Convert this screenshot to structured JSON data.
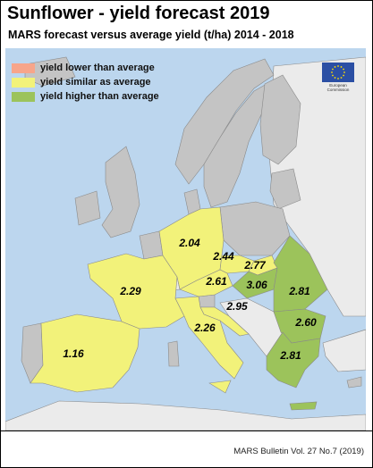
{
  "title": "Sunflower - yield forecast 2019",
  "subtitle": "MARS forecast versus average yield (t/ha) 2014 - 2018",
  "legend": [
    {
      "label": "yield lower than average",
      "color": "#f7a58a"
    },
    {
      "label": "yield similar as average",
      "color": "#f2f27a"
    },
    {
      "label": "yield higher than average",
      "color": "#9cc35b"
    }
  ],
  "colors": {
    "sea": "#bcd6ee",
    "non_producing": "#c4c4c4",
    "non_eu": "#ebebeb",
    "similar": "#f2f27a",
    "higher": "#9cc35b",
    "eu_blue": "#2b4fa4",
    "eu_star": "#ffdd00"
  },
  "eu_logo": {
    "line1": "European",
    "line2": "Commission"
  },
  "regions": [
    {
      "id": "france",
      "value": "2.29",
      "category": "similar"
    },
    {
      "id": "germany",
      "value": "2.04",
      "category": "similar"
    },
    {
      "id": "czechia",
      "value": "2.44",
      "category": "similar"
    },
    {
      "id": "slovakia",
      "value": "2.77",
      "category": "similar"
    },
    {
      "id": "austria",
      "value": "2.61",
      "category": "similar"
    },
    {
      "id": "hungary",
      "value": "3.06",
      "category": "higher"
    },
    {
      "id": "croatia",
      "value": "2.95",
      "category": "similar"
    },
    {
      "id": "italy",
      "value": "2.26",
      "category": "similar"
    },
    {
      "id": "romania",
      "value": "2.81",
      "category": "higher"
    },
    {
      "id": "bulgaria",
      "value": "2.60",
      "category": "higher"
    },
    {
      "id": "greece",
      "value": "2.81",
      "category": "higher"
    },
    {
      "id": "spain",
      "value": "1.16",
      "category": "similar"
    }
  ],
  "footer": "MARS Bulletin Vol. 27 No.7 (2019)"
}
